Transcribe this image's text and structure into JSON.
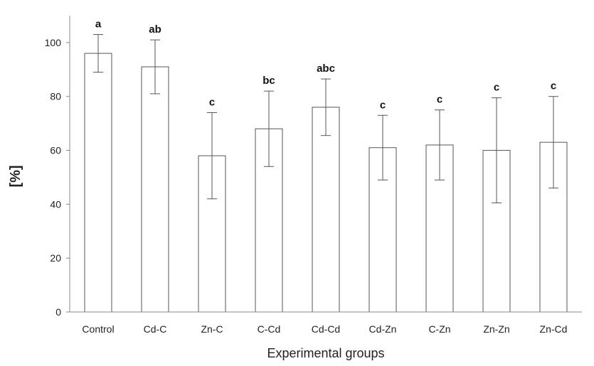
{
  "chart_data": {
    "type": "bar",
    "xlabel": "Experimental groups",
    "ylabel": "[%]",
    "ylim": [
      0,
      110
    ],
    "yticks": [
      0,
      20,
      40,
      60,
      80,
      100
    ],
    "grid": false,
    "legend": "none",
    "categories": [
      "Control",
      "Cd-C",
      "Zn-C",
      "C-Cd",
      "Cd-Cd",
      "Cd-Zn",
      "C-Zn",
      "Zn-Zn",
      "Zn-Cd"
    ],
    "values": [
      96,
      91,
      58,
      68,
      76,
      61,
      62,
      60,
      63
    ],
    "error_upper": [
      103,
      101,
      74,
      82,
      86.5,
      73,
      75,
      79.5,
      80
    ],
    "error_lower": [
      89,
      81,
      42,
      54,
      65.5,
      49,
      49,
      40.5,
      46
    ],
    "significance_labels": [
      "a",
      "ab",
      "c",
      "bc",
      "abc",
      "c",
      "c",
      "c",
      "c"
    ],
    "colors": {
      "bar_fill": "#ffffff",
      "bar_stroke": "#555555",
      "axis": "#888888",
      "error_bar": "#555555"
    }
  }
}
